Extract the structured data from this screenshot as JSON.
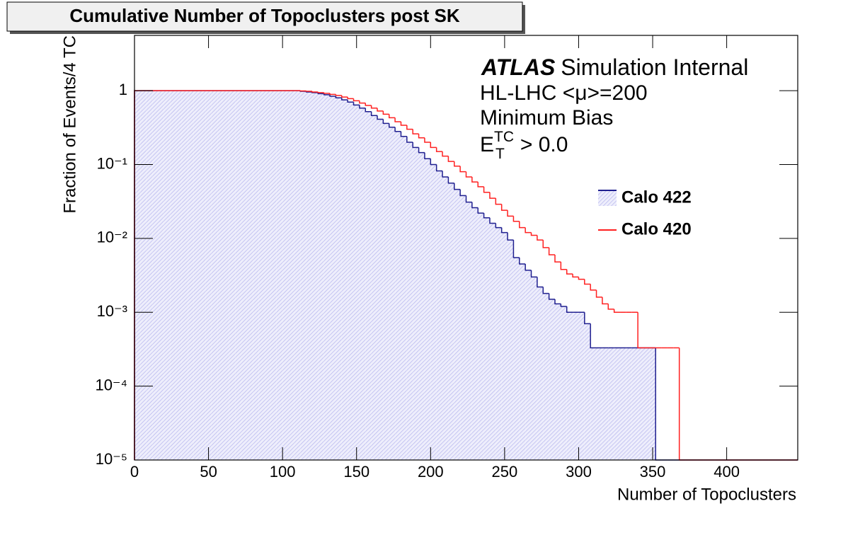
{
  "chart_data": {
    "type": "histogram",
    "title": "Cumulative Number of Topoclusters post SK",
    "x_label": "Number of Topoclusters",
    "y_label": "Fraction of Events/4 TC",
    "annotations": {
      "experiment": "ATLAS",
      "status": "Simulation Internal",
      "conditions": "HL-LHC <μ>=200",
      "sample": "Minimum Bias",
      "cut": {
        "symbol": "E",
        "superscript": "TC",
        "subscript": "T",
        "text": "> 0.0"
      }
    },
    "log_y": true,
    "xlim": [
      0,
      448
    ],
    "ylim": [
      1e-05,
      5.6
    ],
    "xticks": [
      0,
      50,
      100,
      150,
      200,
      250,
      300,
      350,
      400
    ],
    "yticks": [
      {
        "value": 1e-05,
        "label": "10⁻⁵"
      },
      {
        "value": 0.0001,
        "label": "10⁻⁴"
      },
      {
        "value": 0.001,
        "label": "10⁻³"
      },
      {
        "value": 0.01,
        "label": "10⁻²"
      },
      {
        "value": 0.1,
        "label": "10⁻¹"
      },
      1
    ],
    "legend_position": "right",
    "bins": [
      0,
      4,
      8,
      12,
      16,
      20,
      24,
      28,
      32,
      36,
      40,
      44,
      48,
      52,
      56,
      60,
      64,
      68,
      72,
      76,
      80,
      84,
      88,
      92,
      96,
      100,
      104,
      108,
      112,
      116,
      120,
      124,
      128,
      132,
      136,
      140,
      144,
      148,
      152,
      156,
      160,
      164,
      168,
      172,
      176,
      180,
      184,
      188,
      192,
      196,
      200,
      204,
      208,
      212,
      216,
      220,
      224,
      228,
      232,
      236,
      240,
      244,
      248,
      252,
      256,
      260,
      264,
      268,
      272,
      276,
      280,
      284,
      288,
      292,
      296,
      300,
      304,
      308,
      312,
      316,
      320,
      324,
      328,
      332,
      336,
      340,
      344,
      348,
      352,
      356,
      360,
      364,
      368,
      372,
      376,
      380,
      384,
      388,
      392,
      396,
      400,
      404,
      408,
      412,
      416,
      420,
      424,
      428,
      432,
      436,
      440,
      444,
      448
    ],
    "series": [
      {
        "name": "Calo 422",
        "color": "#1f1f8f",
        "fill": "#c9c9f2",
        "values": [
          1,
          1,
          1,
          1,
          1,
          1,
          1,
          1,
          1,
          1,
          1,
          1,
          1,
          1,
          1,
          1,
          1,
          1,
          1,
          1,
          1,
          1,
          1,
          1,
          1,
          1,
          1,
          1,
          0.98,
          0.96,
          0.94,
          0.91,
          0.88,
          0.84,
          0.8,
          0.75,
          0.7,
          0.64,
          0.58,
          0.52,
          0.46,
          0.41,
          0.36,
          0.32,
          0.28,
          0.24,
          0.2,
          0.17,
          0.145,
          0.12,
          0.1,
          0.082,
          0.068,
          0.056,
          0.046,
          0.038,
          0.031,
          0.026,
          0.022,
          0.019,
          0.016,
          0.014,
          0.012,
          0.0095,
          0.0055,
          0.0045,
          0.0037,
          0.003,
          0.0022,
          0.0018,
          0.0015,
          0.0013,
          0.0012,
          0.001,
          0.001,
          0.001,
          0.0007,
          0.00033,
          0.00033,
          0.00033,
          0.00033,
          0.00033,
          0.00033,
          0.00033,
          0.00033,
          0.00033,
          0.00033,
          0.00033,
          0,
          0,
          0,
          0,
          0,
          0,
          0,
          0,
          0,
          0,
          0,
          0,
          0,
          0,
          0,
          0,
          0,
          0,
          0,
          0,
          0,
          0,
          0,
          0
        ]
      },
      {
        "name": "Calo 420",
        "color": "#ff2020",
        "values": [
          1,
          1,
          1,
          1,
          1,
          1,
          1,
          1,
          1,
          1,
          1,
          1,
          1,
          1,
          1,
          1,
          1,
          1,
          1,
          1,
          1,
          1,
          1,
          1,
          1,
          1,
          1,
          1,
          0.99,
          0.98,
          0.96,
          0.94,
          0.92,
          0.89,
          0.86,
          0.82,
          0.78,
          0.73,
          0.68,
          0.63,
          0.58,
          0.53,
          0.48,
          0.43,
          0.38,
          0.34,
          0.3,
          0.26,
          0.23,
          0.2,
          0.17,
          0.15,
          0.13,
          0.11,
          0.095,
          0.08,
          0.068,
          0.058,
          0.05,
          0.042,
          0.035,
          0.029,
          0.024,
          0.02,
          0.017,
          0.014,
          0.012,
          0.011,
          0.0095,
          0.0075,
          0.006,
          0.0048,
          0.0038,
          0.0033,
          0.003,
          0.0028,
          0.0024,
          0.002,
          0.0016,
          0.0013,
          0.0011,
          0.001,
          0.001,
          0.001,
          0.001,
          0.00033,
          0.00033,
          0.00033,
          0.00033,
          0.00033,
          0.00033,
          0.00033,
          0,
          0,
          0,
          0,
          0,
          0,
          0,
          0,
          0,
          0,
          0,
          0,
          0,
          0,
          0,
          0,
          0,
          0,
          0,
          0
        ]
      }
    ]
  }
}
